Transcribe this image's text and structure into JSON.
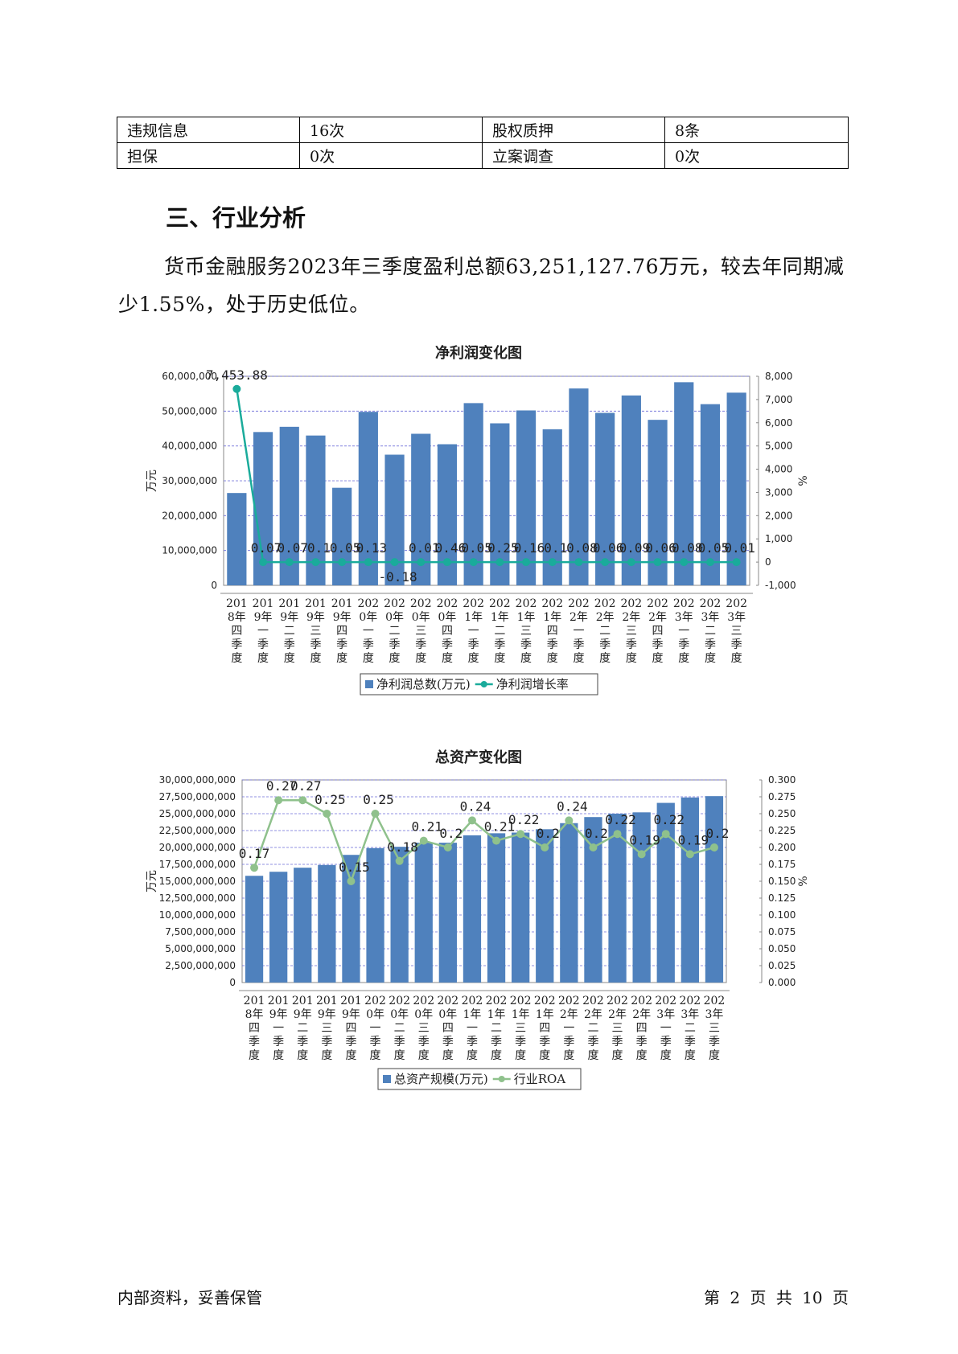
{
  "info_table": {
    "rows": [
      [
        "违规信息",
        "16次",
        "股权质押",
        "8条"
      ],
      [
        "担保",
        "0次",
        "立案调查",
        "0次"
      ]
    ]
  },
  "section_title": "三、行业分析",
  "paragraph": "货币金融服务2023年三季度盈利总额63,251,127.76万元，较去年同期减少1.55%，处于历史低位。",
  "chart_data": [
    {
      "type": "bar+line",
      "title": "净利润变化图",
      "ylabel": "万元",
      "y2label": "%",
      "categories": [
        "2018年四季度",
        "2019年一季度",
        "2019年二季度",
        "2019年三季度",
        "2019年四季度",
        "2020年一季度",
        "2020年二季度",
        "2020年三季度",
        "2020年四季度",
        "2021年一季度",
        "2021年二季度",
        "2021年三季度",
        "2021年四季度",
        "2022年一季度",
        "2022年二季度",
        "2022年三季度",
        "2022年四季度",
        "2023年一季度",
        "2023年二季度",
        "2023年三季度"
      ],
      "category_lines": [
        [
          "201",
          "8年",
          "四",
          "季",
          "度"
        ],
        [
          "201",
          "9年",
          "一",
          "季",
          "度"
        ],
        [
          "201",
          "9年",
          "二",
          "季",
          "度"
        ],
        [
          "201",
          "9年",
          "三",
          "季",
          "度"
        ],
        [
          "201",
          "9年",
          "四",
          "季",
          "度"
        ],
        [
          "202",
          "0年",
          "一",
          "季",
          "度"
        ],
        [
          "202",
          "0年",
          "二",
          "季",
          "度"
        ],
        [
          "202",
          "0年",
          "三",
          "季",
          "度"
        ],
        [
          "202",
          "0年",
          "四",
          "季",
          "度"
        ],
        [
          "202",
          "1年",
          "一",
          "季",
          "度"
        ],
        [
          "202",
          "1年",
          "二",
          "季",
          "度"
        ],
        [
          "202",
          "1年",
          "三",
          "季",
          "度"
        ],
        [
          "202",
          "1年",
          "四",
          "季",
          "度"
        ],
        [
          "202",
          "2年",
          "一",
          "季",
          "度"
        ],
        [
          "202",
          "2年",
          "二",
          "季",
          "度"
        ],
        [
          "202",
          "2年",
          "三",
          "季",
          "度"
        ],
        [
          "202",
          "2年",
          "四",
          "季",
          "度"
        ],
        [
          "202",
          "3年",
          "一",
          "季",
          "度"
        ],
        [
          "202",
          "3年",
          "二",
          "季",
          "度"
        ],
        [
          "202",
          "3年",
          "三",
          "季",
          "度"
        ]
      ],
      "ylim": [
        0,
        60000000
      ],
      "yticks": [
        0,
        10000000,
        20000000,
        30000000,
        40000000,
        50000000,
        60000000
      ],
      "ytick_labels": [
        "0",
        "10,000,000",
        "20,000,000",
        "30,000,000",
        "40,000,000",
        "50,000,000",
        "60,000,000"
      ],
      "y2lim": [
        -1000,
        8000
      ],
      "y2ticks": [
        -1000,
        0,
        1000,
        2000,
        3000,
        4000,
        5000,
        6000,
        7000,
        8000
      ],
      "y2tick_labels": [
        "-1,000",
        "0",
        "1,000",
        "2,000",
        "3,000",
        "4,000",
        "5,000",
        "6,000",
        "7,000",
        "8,000"
      ],
      "grid": true,
      "series": [
        {
          "name": "净利润总数(万元)",
          "kind": "bar",
          "axis": "left",
          "color": "#4f81bd",
          "values": [
            26500000,
            44000000,
            45500000,
            43000000,
            28000000,
            49800000,
            37500000,
            43500000,
            40500000,
            52300000,
            46500000,
            50200000,
            44800000,
            56500000,
            49500000,
            54500000,
            47500000,
            58300000,
            52000000,
            55300000
          ]
        },
        {
          "name": "净利润增长率",
          "kind": "line",
          "axis": "right",
          "color": "#1aab9b",
          "values": [
            7453.88,
            0.07,
            0.07,
            0.1,
            0.05,
            0.13,
            -0.18,
            0.01,
            0.46,
            0.05,
            0.25,
            0.16,
            0.1,
            0.08,
            0.06,
            0.09,
            0.06,
            0.08,
            0.05,
            0.01
          ],
          "labels": [
            "7,453.88",
            "0.07",
            "0.07",
            "0.1",
            "0.05",
            "0.13",
            "-0.18",
            "0.01",
            "0.46",
            "0.05",
            "0.25",
            "0.16",
            "0.1",
            "0.08",
            "0.06",
            "0.09",
            "0.06",
            "0.08",
            "0.05",
            "0.01"
          ]
        }
      ],
      "legend": "bottom-center"
    },
    {
      "type": "bar+line",
      "title": "总资产变化图",
      "ylabel": "万元",
      "y2label": "%",
      "categories": [
        "2018年四季度",
        "2019年一季度",
        "2019年二季度",
        "2019年三季度",
        "2019年四季度",
        "2020年一季度",
        "2020年二季度",
        "2020年三季度",
        "2020年四季度",
        "2021年一季度",
        "2021年二季度",
        "2021年三季度",
        "2021年四季度",
        "2022年一季度",
        "2022年二季度",
        "2022年三季度",
        "2022年四季度",
        "2023年一季度",
        "2023年二季度",
        "2023年三季度"
      ],
      "category_lines": [
        [
          "201",
          "8年",
          "四",
          "季",
          "度"
        ],
        [
          "201",
          "9年",
          "一",
          "季",
          "度"
        ],
        [
          "201",
          "9年",
          "二",
          "季",
          "度"
        ],
        [
          "201",
          "9年",
          "三",
          "季",
          "度"
        ],
        [
          "201",
          "9年",
          "四",
          "季",
          "度"
        ],
        [
          "202",
          "0年",
          "一",
          "季",
          "度"
        ],
        [
          "202",
          "0年",
          "二",
          "季",
          "度"
        ],
        [
          "202",
          "0年",
          "三",
          "季",
          "度"
        ],
        [
          "202",
          "0年",
          "四",
          "季",
          "度"
        ],
        [
          "202",
          "1年",
          "一",
          "季",
          "度"
        ],
        [
          "202",
          "1年",
          "二",
          "季",
          "度"
        ],
        [
          "202",
          "1年",
          "三",
          "季",
          "度"
        ],
        [
          "202",
          "1年",
          "四",
          "季",
          "度"
        ],
        [
          "202",
          "2年",
          "一",
          "季",
          "度"
        ],
        [
          "202",
          "2年",
          "二",
          "季",
          "度"
        ],
        [
          "202",
          "2年",
          "三",
          "季",
          "度"
        ],
        [
          "202",
          "2年",
          "四",
          "季",
          "度"
        ],
        [
          "202",
          "3年",
          "一",
          "季",
          "度"
        ],
        [
          "202",
          "3年",
          "二",
          "季",
          "度"
        ],
        [
          "202",
          "3年",
          "三",
          "季",
          "度"
        ]
      ],
      "ylim": [
        0,
        30000000000
      ],
      "yticks": [
        0,
        2500000000,
        5000000000,
        7500000000,
        10000000000,
        12500000000,
        15000000000,
        17500000000,
        20000000000,
        22500000000,
        25000000000,
        27500000000,
        30000000000
      ],
      "ytick_labels": [
        "0",
        "2,500,000,000",
        "5,000,000,000",
        "7,500,000,000",
        "10,000,000,000",
        "12,500,000,000",
        "15,000,000,000",
        "17,500,000,000",
        "20,000,000,000",
        "22,500,000,000",
        "25,000,000,000",
        "27,500,000,000",
        "30,000,000,000"
      ],
      "y2lim": [
        0,
        0.3
      ],
      "y2ticks": [
        0,
        0.025,
        0.05,
        0.075,
        0.1,
        0.125,
        0.15,
        0.175,
        0.2,
        0.225,
        0.25,
        0.275,
        0.3
      ],
      "y2tick_labels": [
        "0.000",
        "0.025",
        "0.050",
        "0.075",
        "0.100",
        "0.125",
        "0.150",
        "0.175",
        "0.200",
        "0.225",
        "0.250",
        "0.275",
        "0.300"
      ],
      "grid": true,
      "series": [
        {
          "name": "总资产规模(万元)",
          "kind": "bar",
          "axis": "left",
          "color": "#4f81bd",
          "values": [
            15800000000,
            16400000000,
            17000000000,
            17400000000,
            18900000000,
            19900000000,
            20100000000,
            20700000000,
            20700000000,
            21800000000,
            22100000000,
            22200000000,
            22700000000,
            23600000000,
            24500000000,
            25000000000,
            25200000000,
            26600000000,
            27400000000,
            27600000000
          ]
        },
        {
          "name": "行业ROA",
          "kind": "line",
          "axis": "right",
          "color": "#8fc18c",
          "values": [
            0.17,
            0.27,
            0.27,
            0.25,
            0.15,
            0.25,
            0.18,
            0.21,
            0.2,
            0.24,
            0.21,
            0.22,
            0.2,
            0.24,
            0.2,
            0.22,
            0.19,
            0.22,
            0.19,
            0.2
          ],
          "labels": [
            "0.17",
            "0.27",
            "0.27",
            "0.25",
            "0.15",
            "0.25",
            "0.18",
            "0.21",
            "0.2",
            "0.24",
            "0.21",
            "0.22",
            "0.2",
            "0.24",
            "0.2",
            "0.22",
            "0.19",
            "0.22",
            "0.19",
            "0.2"
          ]
        }
      ],
      "legend": "bottom-center"
    }
  ],
  "footer": {
    "left": "内部资料，妥善保管",
    "right": "第 2 页  共 10 页"
  }
}
